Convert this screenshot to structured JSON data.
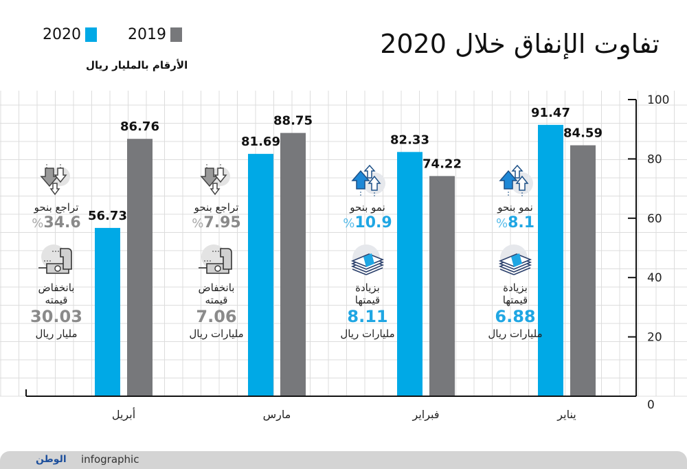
{
  "title": "تفاوت الإنفاق خلال 2020",
  "units_note": "الأرقام بالمليار ريال",
  "legend": [
    {
      "label": "2020",
      "color": "#00a9e6"
    },
    {
      "label": "2019",
      "color": "#77787b"
    }
  ],
  "colors": {
    "series_2020": "#00a9e6",
    "series_2019": "#77787b",
    "increase_accent": "#1fa6e3",
    "decrease_accent": "#8a8a8a",
    "grid": "#dcdcdc",
    "axis": "#111111"
  },
  "chart_data": {
    "type": "bar",
    "title": "تفاوت الإنفاق خلال 2020",
    "subtitle": "الأرقام بالمليار ريال",
    "xlabel": "",
    "ylabel": "",
    "ylim": [
      0,
      100
    ],
    "yticks": [
      0,
      20,
      40,
      60,
      80,
      100
    ],
    "grid": true,
    "legend_position": "top-left",
    "categories": [
      "يناير",
      "فبراير",
      "مارس",
      "أبريل"
    ],
    "series": [
      {
        "name": "2020",
        "values": [
          91.47,
          82.33,
          81.69,
          56.73
        ]
      },
      {
        "name": "2019",
        "values": [
          84.59,
          74.22,
          88.75,
          86.76
        ]
      }
    ],
    "value_labels": {
      "2020": [
        "91.47",
        "82.33",
        "81.69",
        "56.73"
      ],
      "2019": [
        "84.59",
        "74.22",
        "88.75",
        "86.76"
      ]
    }
  },
  "annotations": [
    {
      "month": "يناير",
      "trend": "up",
      "trend_icon": "arrows-up-icon",
      "trend_label": "نمو بنحو",
      "trend_value": "8.1",
      "percent_sign": "%",
      "value_icon": "money-stack-icon",
      "value_label_1": "بزيادة",
      "value_label_2": "قيمتها",
      "value_amount": "6.88",
      "value_unit": "مليارات ريال"
    },
    {
      "month": "فبراير",
      "trend": "up",
      "trend_icon": "arrows-up-icon",
      "trend_label": "نمو بنحو",
      "trend_value": "10.9",
      "percent_sign": "%",
      "value_icon": "money-stack-icon",
      "value_label_1": "بزيادة",
      "value_label_2": "قيمتها",
      "value_amount": "8.11",
      "value_unit": "مليارات ريال"
    },
    {
      "month": "مارس",
      "trend": "down",
      "trend_icon": "arrows-down-icon",
      "trend_label": "تراجع بنحو",
      "trend_value": "7.95",
      "percent_sign": "%",
      "value_icon": "money-drop-icon",
      "value_label_1": "بانخفاض",
      "value_label_2": "قيمته",
      "value_amount": "7.06",
      "value_unit": "مليارات ريال"
    },
    {
      "month": "أبريل",
      "trend": "down",
      "trend_icon": "arrows-down-icon",
      "trend_label": "تراجع بنحو",
      "trend_value": "34.6",
      "percent_sign": "%",
      "value_icon": "money-drop-icon",
      "value_label_1": "بانخفاض",
      "value_label_2": "قيمته",
      "value_amount": "30.03",
      "value_unit": "مليار ريال"
    }
  ],
  "footer": {
    "logo_text": "الوطن",
    "label": "infographic"
  }
}
